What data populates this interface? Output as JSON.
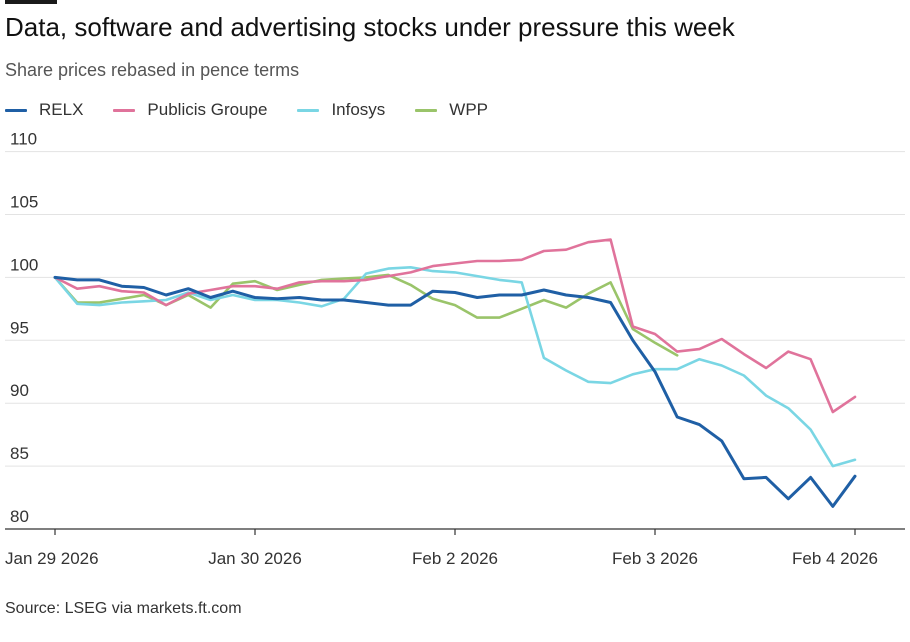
{
  "title": "Data, software and advertising stocks under pressure this week",
  "subtitle": "Share prices rebased in pence terms",
  "source": "Source: LSEG via markets.ft.com",
  "chart_data": {
    "type": "line",
    "title": "Data, software and advertising stocks under pressure this week",
    "subtitle": "Share prices rebased in pence terms",
    "xlabel": "",
    "ylabel": "",
    "ylim": [
      80,
      111
    ],
    "yticks": [
      80,
      85,
      90,
      95,
      100,
      105,
      110
    ],
    "grid": "horizontal",
    "legend_position": "top-left",
    "x_ticks": [
      {
        "index": 0,
        "label": "Jan 29 2026"
      },
      {
        "index": 9,
        "label": "Jan 30 2026"
      },
      {
        "index": 18,
        "label": "Feb 2 2026"
      },
      {
        "index": 27,
        "label": "Feb 3 2026"
      },
      {
        "index": 36,
        "label": "Feb 4 2026"
      }
    ],
    "series": [
      {
        "name": "RELX",
        "color": "#1f5fa5",
        "values": [
          100.0,
          99.8,
          99.8,
          99.3,
          99.2,
          98.6,
          99.1,
          98.4,
          98.9,
          98.4,
          98.3,
          98.4,
          98.2,
          98.2,
          98.0,
          97.8,
          97.8,
          98.9,
          98.8,
          98.4,
          98.6,
          98.6,
          99.0,
          98.6,
          98.4,
          98.0,
          95.0,
          92.5,
          88.9,
          88.3,
          87.0,
          84.0,
          84.1,
          82.4,
          84.1,
          81.8,
          84.2
        ]
      },
      {
        "name": "Publicis Groupe",
        "color": "#e0739b",
        "values": [
          100.0,
          99.1,
          99.3,
          98.9,
          98.8,
          97.8,
          98.7,
          99.0,
          99.3,
          99.3,
          99.1,
          99.6,
          99.7,
          99.7,
          99.8,
          100.1,
          100.4,
          100.9,
          101.1,
          101.3,
          101.3,
          101.4,
          102.1,
          102.2,
          102.8,
          103.0,
          96.1,
          95.5,
          94.1,
          94.3,
          95.1,
          93.9,
          92.8,
          94.1,
          93.5,
          89.3,
          90.5
        ]
      },
      {
        "name": "Infosys",
        "color": "#7ad6e4",
        "values": [
          100.0,
          97.9,
          97.8,
          98.0,
          98.1,
          98.2,
          98.8,
          98.2,
          98.6,
          98.2,
          98.2,
          98.0,
          97.7,
          98.3,
          100.3,
          100.7,
          100.8,
          100.5,
          100.4,
          100.1,
          99.8,
          99.6,
          93.6,
          92.6,
          91.7,
          91.6,
          92.3,
          92.7,
          92.7,
          93.5,
          93.0,
          92.2,
          90.6,
          89.6,
          87.9,
          85.0,
          85.5
        ]
      },
      {
        "name": "WPP",
        "color": "#9ac46a",
        "values": [
          100.0,
          98.0,
          98.0,
          98.3,
          98.6,
          97.8,
          98.6,
          97.6,
          99.5,
          99.7,
          99.0,
          99.4,
          99.8,
          99.9,
          100.0,
          100.2,
          99.4,
          98.3,
          97.8,
          96.8,
          96.8,
          97.5,
          98.2,
          97.6,
          98.7,
          99.6,
          95.9,
          94.8,
          93.8
        ]
      }
    ]
  }
}
